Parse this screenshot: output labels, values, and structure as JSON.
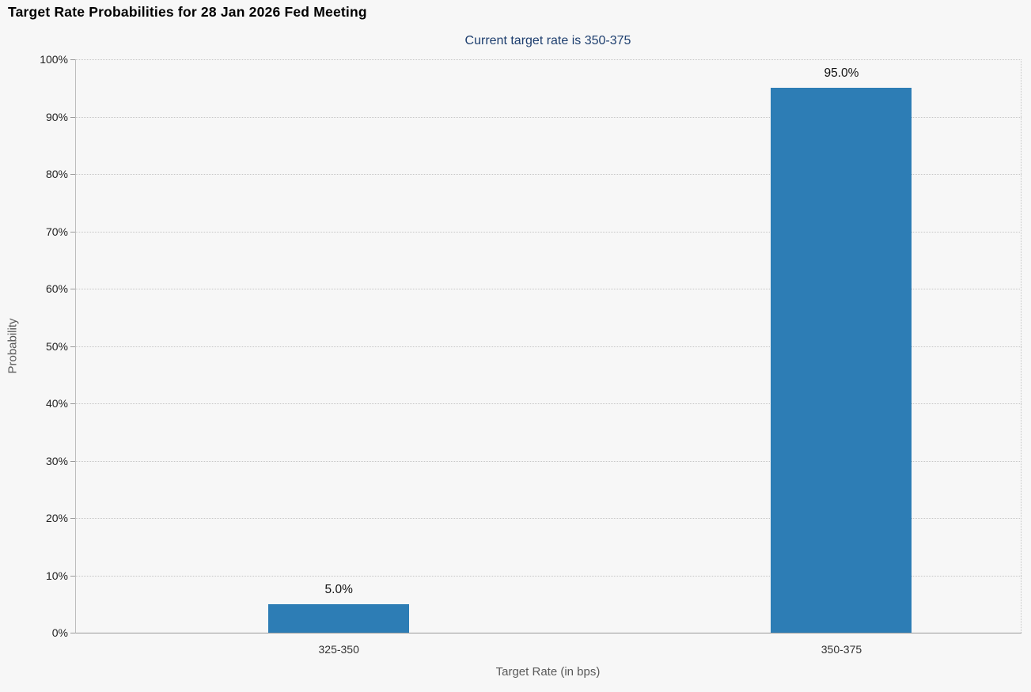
{
  "page": {
    "title": "Target Rate Probabilities for 28 Jan 2026 Fed Meeting",
    "subtitle": "Current target rate is 350-375"
  },
  "chart_data": {
    "type": "bar",
    "title": "Target Rate Probabilities for 28 Jan 2026 Fed Meeting",
    "subtitle": "Current target rate is 350-375",
    "categories": [
      "325-350",
      "350-375"
    ],
    "values": [
      5.0,
      95.0
    ],
    "bar_labels": [
      "5.0%",
      "95.0%"
    ],
    "xlabel": "Target Rate (in bps)",
    "ylabel": "Probability",
    "ylim": [
      0,
      100
    ],
    "ytick_step": 10,
    "ytick_labels": [
      "0%",
      "10%",
      "20%",
      "30%",
      "40%",
      "50%",
      "60%",
      "70%",
      "80%",
      "90%",
      "100%"
    ],
    "grid": "horizontal-dotted",
    "legend": "none",
    "bar_color": "#2d7db5",
    "background_color": "#f7f7f7",
    "subtitle_color": "#1d3e6e"
  }
}
